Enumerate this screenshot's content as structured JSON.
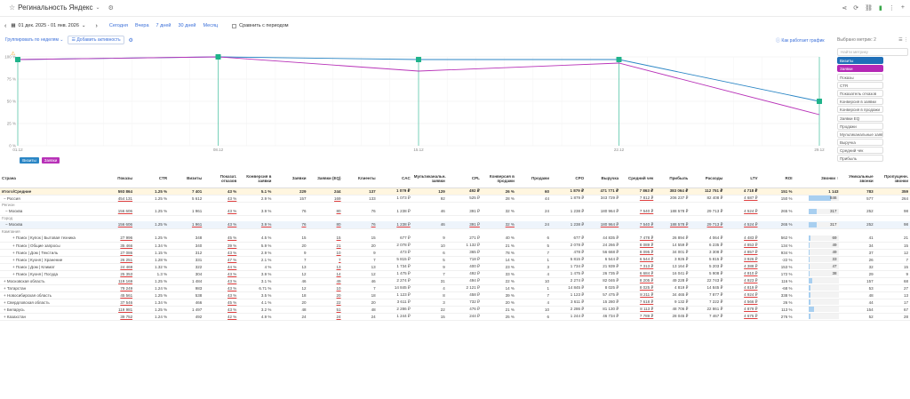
{
  "app": {
    "title": "Регинальность Яндекс",
    "icons": [
      "share-icon",
      "refresh-icon",
      "link-icon",
      "chart-icon",
      "more-icon",
      "add-icon"
    ]
  },
  "datebar": {
    "range": "01 дек. 2025 - 01 янв. 2026",
    "quick": [
      "Сегодня",
      "Вчера",
      "7 дней",
      "30 дней",
      "Месяц"
    ],
    "compare": "Сравнить с периодом"
  },
  "group": {
    "label": "Группировать по неделям",
    "add": "Добавить активность",
    "how": "Как работает график"
  },
  "metrics_panel": {
    "title": "Выбрано метрик: 2",
    "search_placeholder": "Найти метрику",
    "items": [
      {
        "label": "Визиты",
        "sel": "blue"
      },
      {
        "label": "Заявки",
        "sel": "mag"
      },
      {
        "label": "Показы",
        "sel": ""
      },
      {
        "label": "CTR",
        "sel": ""
      },
      {
        "label": "Показатель отказов",
        "sel": ""
      },
      {
        "label": "Конверсия в заявки",
        "sel": ""
      },
      {
        "label": "Конверсия в продажи",
        "sel": ""
      },
      {
        "label": "Заявки EQ",
        "sel": ""
      },
      {
        "label": "Продажи",
        "sel": ""
      },
      {
        "label": "Мультиканальные заявки",
        "sel": ""
      },
      {
        "label": "Выручка",
        "sel": ""
      },
      {
        "label": "Средний чек",
        "sel": ""
      },
      {
        "label": "Прибыль",
        "sel": ""
      }
    ]
  },
  "chart_data": {
    "type": "line",
    "x": [
      "01.12",
      "08.12",
      "15.12",
      "22.12",
      "29.12"
    ],
    "y_ticks": [
      "100 %",
      "75 %",
      "50 %",
      "25 %",
      "0 %"
    ],
    "ylim": [
      0,
      100
    ],
    "legend": [
      "Визиты",
      "Заявки"
    ],
    "colors": {
      "visits": "#2b86c5",
      "leads": "#b832b8",
      "marker": "#1fb38a"
    },
    "series": [
      {
        "name": "Визиты",
        "values": [
          97,
          100,
          97,
          97,
          50
        ]
      },
      {
        "name": "Заявки",
        "values": [
          97,
          100,
          84,
          93,
          35
        ]
      }
    ]
  },
  "table": {
    "columns": [
      "Страна",
      "Показы",
      "CTR",
      "Визиты",
      "Показат. отказов",
      "Конверсия в заявки",
      "Заявки",
      "Заявки (EQ)",
      "Клиенты",
      "CAC",
      "Мультиканальн. заявки",
      "CPL",
      "Конверсия в продажи",
      "Продажи",
      "CPO",
      "Выручка",
      "Средний чек",
      "Прибыль",
      "Расходы",
      "LTV",
      "ROI",
      "Звонки ↑",
      "Уникальные звонки",
      "Пропущенн. звонки"
    ],
    "total_label": "Итого/Средние",
    "total": [
      "",
      "593 864",
      "1.25 %",
      "7 401",
      "43 %",
      "5.1 %",
      "229",
      "244",
      "137",
      "1 079 ₽",
      "129",
      "492 ₽",
      "26 %",
      "60",
      "1 879 ₽",
      "471 771 ₽",
      "7 863 ₽",
      "383 064 ₽",
      "112 751 ₽",
      "4 718 ₽",
      "151 %",
      "1 143",
      "783",
      "359"
    ],
    "rows": [
      {
        "t": "row",
        "c": [
          "− Россия",
          "454 131",
          "1.25 %",
          "5 612",
          "43 %",
          "2.9 %",
          "157",
          "169",
          "133",
          "1 073 ₽",
          "92",
          "525 ₽",
          "28 %",
          "44",
          "1 879 ₽",
          "343 729 ₽",
          "7 812 ₽",
          "206 237 ₽",
          "82 408 ₽",
          "4 687 ₽",
          "150 %",
          "846",
          "577",
          "264"
        ],
        "bar": 0.74
      },
      {
        "t": "section",
        "c": [
          "Регион"
        ]
      },
      {
        "t": "row",
        "c": [
          "− Москва",
          "156 606",
          "1.25 %",
          "1 961",
          "43 %",
          "3.9 %",
          "76",
          "80",
          "76",
          "1 238 ₽",
          "46",
          "391 ₽",
          "32 %",
          "24",
          "1 238 ₽",
          "180 964 ₽",
          "7 540 ₽",
          "188 578 ₽",
          "29 713 ₽",
          "4 524 ₽",
          "265 %",
          "317",
          "252",
          "98"
        ],
        "bar": 0.28
      },
      {
        "t": "section",
        "c": [
          "Город"
        ]
      },
      {
        "t": "row",
        "c": [
          "− Москва",
          "156 606",
          "1.25 %",
          "1 961",
          "43 %",
          "3.9 %",
          "76",
          "80",
          "76",
          "1 238 ₽",
          "46",
          "391 ₽",
          "32 %",
          "24",
          "1 238 ₽",
          "180 964 ₽",
          "7 540 ₽",
          "188 578 ₽",
          "29 713 ₽",
          "4 524 ₽",
          "265 %",
          "317",
          "252",
          "98"
        ],
        "bar": 0.28,
        "sel": true
      },
      {
        "t": "section",
        "c": [
          "Кампания"
        ]
      },
      {
        "t": "row",
        "c": [
          "+ Поиск | Купок | Бытовая техника",
          "27 996",
          "1.25 %",
          "348",
          "45 %",
          "4.5 %",
          "15",
          "15",
          "15",
          "677 ₽",
          "9",
          "271 ₽",
          "40 %",
          "6",
          "677 ₽",
          "44 835 ₽",
          "7 478 ₽",
          "26 894 ₽",
          "4 064 ₽",
          "4 483 ₽",
          "562 %",
          "69",
          "41",
          "21"
        ],
        "bar": 0.06
      },
      {
        "t": "row",
        "c": [
          "+ Поиск | Общие запросы",
          "35 466",
          "1.34 %",
          "340",
          "39 %",
          "5.9 %",
          "20",
          "21",
          "20",
          "2 078 ₽",
          "10",
          "1 132 ₽",
          "21 %",
          "5",
          "2 078 ₽",
          "24 266 ₽",
          "8 089 ₽",
          "14 559 ₽",
          "6 235 ₽",
          "4 853 ₽",
          "134 %",
          "49",
          "34",
          "15"
        ],
        "bar": 0.04
      },
      {
        "t": "row",
        "c": [
          "+ Поиск | Дом | Текстиль",
          "27 086",
          "1.15 %",
          "312",
          "43 %",
          "2.9 %",
          "9",
          "10",
          "9",
          "473 ₽",
          "6",
          "365 ₽",
          "78 %",
          "7",
          "478 ₽",
          "56 668 ₽",
          "8 095 ₽",
          "34 001 ₽",
          "3 308 ₽",
          "4 857 ₽",
          "934 %",
          "49",
          "37",
          "12"
        ],
        "bar": 0.04
      },
      {
        "t": "row",
        "c": [
          "+ Поиск | Кухня | Хранение",
          "26 251",
          "1.28 %",
          "331",
          "47 %",
          "2.1 %",
          "7",
          "7",
          "7",
          "5 815 ₽",
          "5",
          "718 ₽",
          "14 %",
          "1",
          "5 815 ₽",
          "6 544 ₽",
          "6 544 ₽",
          "3 926 ₽",
          "5 815 ₽",
          "3 926 ₽",
          "-22 %",
          "33",
          "26",
          "7"
        ],
        "bar": 0.03
      },
      {
        "t": "row",
        "c": [
          "+ Поиск | Дом | Климат",
          "24 469",
          "1.32 %",
          "322",
          "44 %",
          "4 %",
          "13",
          "13",
          "13",
          "1 734 ₽",
          "9",
          "400 ₽",
          "23 %",
          "3",
          "1 734 ₽",
          "21 939 ₽",
          "7 313 ₽",
          "13 164 ₽",
          "5 203 ₽",
          "4 388 ₽",
          "153 %",
          "47",
          "32",
          "15"
        ],
        "bar": 0.04
      },
      {
        "t": "row",
        "c": [
          "+ Поиск | Кухня | Посуда",
          "25 353",
          "1.3 %",
          "304",
          "43 %",
          "3.9 %",
          "12",
          "14",
          "12",
          "1 475 ₽",
          "7",
          "492 ₽",
          "33 %",
          "4",
          "1 475 ₽",
          "26 735 ₽",
          "6 684 ₽",
          "16 041 ₽",
          "5 908 ₽",
          "4 810 ₽",
          "172 %",
          "38",
          "29",
          "9"
        ],
        "bar": 0.03
      },
      {
        "t": "row",
        "c": [
          "+ Московская область",
          "119 169",
          "1.25 %",
          "1 484",
          "43 %",
          "3.1 %",
          "46",
          "49",
          "46",
          "2 274 ₽",
          "31",
          "494 ₽",
          "22 %",
          "10",
          "2 274 ₽",
          "82 046 ₽",
          "8 205 ₽",
          "49 228 ₽",
          "22 743 ₽",
          "4 923 ₽",
          "116 %",
          "",
          "157",
          "68"
        ],
        "bar": 0.14
      },
      {
        "t": "row",
        "c": [
          "+ Татарстан",
          "79 249",
          "1.24 %",
          "983",
          "43 %",
          "6.71 %",
          "12",
          "10",
          "7",
          "14 845 ₽",
          "4",
          "2 121 ₽",
          "14 %",
          "1",
          "14 845 ₽",
          "8 025 ₽",
          "8 025 ₽",
          "4 819 ₽",
          "14 845 ₽",
          "4 819 ₽",
          "-68 %",
          "",
          "53",
          "27"
        ],
        "bar": 0.07
      },
      {
        "t": "row",
        "c": [
          "+ Новосибирская область",
          "45 561",
          "1.25 %",
          "538",
          "43 %",
          "3.5 %",
          "18",
          "20",
          "18",
          "1 123 ₽",
          "8",
          "458 ₽",
          "39 %",
          "7",
          "1 123 ₽",
          "57 475 ₽",
          "8 211 ₽",
          "34 465 ₽",
          "7 877 ₽",
          "4 924 ₽",
          "338 %",
          "",
          "48",
          "13"
        ],
        "bar": 0.06
      },
      {
        "t": "row",
        "c": [
          "+ Свердловская область",
          "37 546",
          "1.34 %",
          "466",
          "45 %",
          "4.1 %",
          "20",
          "22",
          "20",
          "3 611 ₽",
          "3",
          "732 ₽",
          "20 %",
          "4",
          "3 611 ₽",
          "15 280 ₽",
          "7 618 ₽",
          "9 132 ₽",
          "7 222 ₽",
          "4 566 ₽",
          "26 %",
          "",
          "44",
          "17"
        ],
        "bar": 0.06
      },
      {
        "t": "row",
        "c": [
          "+ Беларусь",
          "119 981",
          "1.25 %",
          "1 497",
          "43 %",
          "3.2 %",
          "48",
          "51",
          "48",
          "2 286 ₽",
          "22",
          "476 ₽",
          "21 %",
          "10",
          "2 286 ₽",
          "81 130 ₽",
          "8 113 ₽",
          "48 706 ₽",
          "22 861 ₽",
          "4 879 ₽",
          "113 %",
          "",
          "154",
          "67"
        ],
        "bar": 0.19
      },
      {
        "t": "row",
        "c": [
          "+ Казахстан",
          "39 752",
          "1.24 %",
          "492",
          "42 %",
          "4.9 %",
          "24",
          "24",
          "24",
          "1 244 ₽",
          "15",
          "244 ₽",
          "25 %",
          "6",
          "1 244 ₽",
          "46 734 ₽",
          "7 789 ₽",
          "28 045 ₽",
          "7 467 ₽",
          "4 675 ₽",
          "276 %",
          "",
          "52",
          "28"
        ],
        "bar": 0.07
      }
    ]
  }
}
